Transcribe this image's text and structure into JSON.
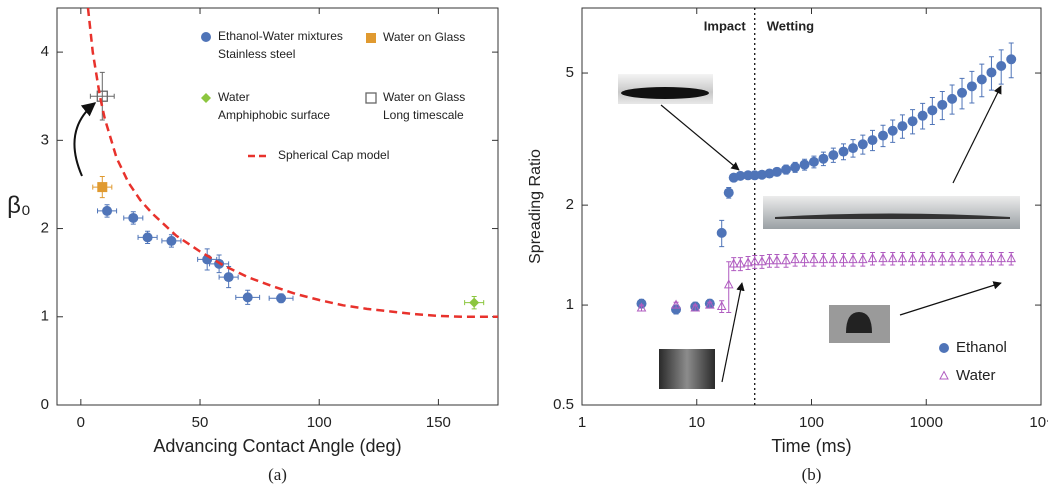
{
  "chart_data": [
    {
      "type": "scatter",
      "xlabel": "Advancing Contact Angle (deg)",
      "ylabel": "β₀",
      "caption": "(a)",
      "xlim": [
        -10,
        175
      ],
      "xticks": [
        0,
        50,
        100,
        150
      ],
      "ylim": [
        0,
        4.5
      ],
      "yticks": [
        0,
        1,
        2,
        3,
        4
      ],
      "series": [
        {
          "name": "Ethanol-Water mixtures",
          "detail": "Stainless steel",
          "marker": "circle",
          "color": "#4f74b8",
          "x": [
            11,
            22,
            28,
            38,
            53,
            58,
            62,
            70,
            84
          ],
          "values": [
            2.2,
            2.12,
            1.9,
            1.86,
            1.65,
            1.6,
            1.45,
            1.22,
            1.21
          ],
          "xerr": [
            4,
            4,
            4,
            4,
            4,
            4,
            4,
            5,
            5
          ],
          "yerr": [
            0.07,
            0.07,
            0.07,
            0.07,
            0.12,
            0.1,
            0.12,
            0.08,
            0.05
          ]
        },
        {
          "name": "Water on Glass",
          "marker": "square",
          "color": "#e09a30",
          "x": [
            9
          ],
          "values": [
            2.47
          ],
          "xerr": [
            4
          ],
          "yerr": [
            0.12
          ]
        },
        {
          "name": "Water",
          "detail": "Amphiphobic surface",
          "marker": "diamond",
          "color": "#8cc63f",
          "x": [
            165
          ],
          "values": [
            1.16
          ],
          "xerr": [
            4
          ],
          "yerr": [
            0.07
          ]
        },
        {
          "name": "Water on Glass",
          "detail": "Long timescale",
          "marker": "open-square",
          "color": "#666666",
          "x": [
            9
          ],
          "values": [
            3.5
          ],
          "xerr": [
            5
          ],
          "yerr": [
            0.27
          ]
        },
        {
          "name": "Spherical Cap model",
          "type": "line",
          "dash": true,
          "color": "#e8322c",
          "x": [
            3,
            5,
            8,
            10,
            15,
            20,
            25,
            30,
            40,
            50,
            60,
            70,
            80,
            90,
            100,
            110,
            120,
            130,
            140,
            150,
            160,
            170,
            175
          ],
          "values": [
            4.5,
            4.0,
            3.5,
            3.25,
            2.8,
            2.52,
            2.32,
            2.17,
            1.92,
            1.74,
            1.58,
            1.45,
            1.35,
            1.26,
            1.19,
            1.13,
            1.09,
            1.06,
            1.03,
            1.01,
            1.0,
            1.0,
            1.0
          ]
        }
      ]
    },
    {
      "type": "scatter",
      "log_x": true,
      "log_y": true,
      "xlabel": "Time (ms)",
      "ylabel": "Spreading Ratio",
      "caption": "(b)",
      "xlim": [
        1,
        10000
      ],
      "xticks": [
        1,
        10,
        100,
        1000,
        {
          "value": 10000,
          "label": "10⁴"
        }
      ],
      "ylim": [
        0.5,
        7.85
      ],
      "yticks": [
        0.5,
        1,
        2,
        5
      ],
      "vline": 32,
      "annotations": [
        "Impact",
        "Wetting"
      ],
      "series": [
        {
          "name": "Ethanol",
          "marker": "circle",
          "color": "#4f74b8",
          "x": [
            3.3,
            6.6,
            9.7,
            13,
            16.5,
            19,
            21,
            24,
            28,
            32,
            37,
            43,
            50,
            60,
            72,
            87,
            105,
            127,
            155,
            190,
            230,
            280,
            340,
            420,
            510,
            620,
            760,
            930,
            1130,
            1380,
            1680,
            2050,
            2500,
            3050,
            3700,
            4500,
            5500
          ],
          "values": [
            1.01,
            0.97,
            0.99,
            1.01,
            1.65,
            2.18,
            2.42,
            2.45,
            2.46,
            2.46,
            2.47,
            2.49,
            2.52,
            2.56,
            2.6,
            2.65,
            2.7,
            2.76,
            2.83,
            2.9,
            2.97,
            3.05,
            3.14,
            3.24,
            3.35,
            3.46,
            3.58,
            3.72,
            3.86,
            4.01,
            4.18,
            4.36,
            4.56,
            4.78,
            5.02,
            5.25,
            5.5
          ],
          "yerr": [
            0.03,
            0.03,
            0.03,
            0.03,
            0.15,
            0.08,
            0.04,
            0.04,
            0.04,
            0.05,
            0.05,
            0.06,
            0.07,
            0.08,
            0.09,
            0.1,
            0.11,
            0.13,
            0.14,
            0.16,
            0.18,
            0.2,
            0.22,
            0.24,
            0.26,
            0.28,
            0.3,
            0.33,
            0.36,
            0.39,
            0.42,
            0.46,
            0.5,
            0.54,
            0.58,
            0.62,
            0.66
          ]
        },
        {
          "name": "Water",
          "marker": "open-triangle",
          "color": "#b05cc0",
          "x": [
            3.3,
            6.6,
            9.7,
            13,
            16.5,
            19,
            21,
            24,
            28,
            32,
            37,
            43,
            50,
            60,
            72,
            87,
            105,
            127,
            155,
            190,
            230,
            280,
            340,
            420,
            510,
            620,
            760,
            930,
            1130,
            1380,
            1680,
            2050,
            2500,
            3050,
            3700,
            4500,
            5500
          ],
          "values": [
            0.98,
            1.0,
            0.98,
            1.0,
            0.99,
            1.15,
            1.33,
            1.33,
            1.34,
            1.35,
            1.35,
            1.36,
            1.36,
            1.36,
            1.37,
            1.37,
            1.37,
            1.37,
            1.37,
            1.37,
            1.37,
            1.37,
            1.38,
            1.38,
            1.38,
            1.38,
            1.38,
            1.38,
            1.38,
            1.38,
            1.38,
            1.38,
            1.38,
            1.38,
            1.38,
            1.38,
            1.38
          ],
          "yerr": [
            0.02,
            0.02,
            0.02,
            0.02,
            0.04,
            0.2,
            0.06,
            0.06,
            0.06,
            0.06,
            0.06,
            0.06,
            0.06,
            0.06,
            0.06,
            0.06,
            0.06,
            0.06,
            0.06,
            0.06,
            0.06,
            0.06,
            0.06,
            0.06,
            0.06,
            0.06,
            0.06,
            0.06,
            0.06,
            0.06,
            0.06,
            0.06,
            0.06,
            0.06,
            0.06,
            0.06,
            0.06
          ]
        }
      ]
    }
  ]
}
